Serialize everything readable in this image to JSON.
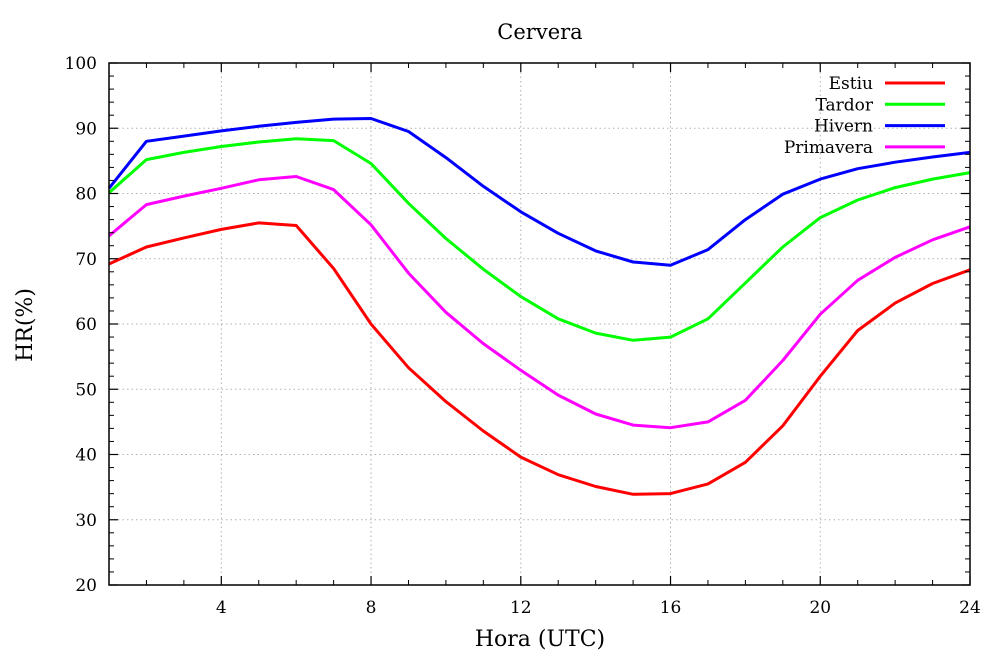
{
  "chart_data": {
    "type": "line",
    "title": "Cervera",
    "xlabel": "Hora (UTC)",
    "ylabel": "HR(%)",
    "xlim": [
      1,
      24
    ],
    "ylim": [
      20,
      100
    ],
    "xticks": [
      4,
      8,
      12,
      16,
      20,
      24
    ],
    "yticks": [
      20,
      30,
      40,
      50,
      60,
      70,
      80,
      90,
      100
    ],
    "grid": true,
    "legend_position": "top-right",
    "x": [
      1,
      2,
      3,
      4,
      5,
      6,
      7,
      8,
      9,
      10,
      11,
      12,
      13,
      14,
      15,
      16,
      17,
      18,
      19,
      20,
      21,
      22,
      23,
      24
    ],
    "series": [
      {
        "name": "Estiu",
        "color": "#ff0000",
        "values": [
          69.2,
          71.8,
          73.2,
          74.5,
          75.5,
          75.1,
          68.5,
          60.0,
          53.3,
          48.1,
          43.6,
          39.6,
          36.9,
          35.1,
          33.9,
          34.0,
          35.5,
          38.8,
          44.4,
          52.0,
          59.0,
          63.2,
          66.2,
          68.3
        ]
      },
      {
        "name": "Tardor",
        "color": "#00ff00",
        "values": [
          80.1,
          85.2,
          86.3,
          87.2,
          87.9,
          88.4,
          88.1,
          84.6,
          78.5,
          73.1,
          68.4,
          64.2,
          60.8,
          58.6,
          57.5,
          58.0,
          60.8,
          66.3,
          71.8,
          76.3,
          79.0,
          80.9,
          82.2,
          83.2
        ]
      },
      {
        "name": "Hivern",
        "color": "#0000ff",
        "values": [
          80.8,
          88.0,
          88.8,
          89.6,
          90.3,
          90.9,
          91.4,
          91.5,
          89.5,
          85.5,
          81.1,
          77.2,
          73.9,
          71.2,
          69.5,
          69.0,
          71.4,
          76.0,
          79.9,
          82.2,
          83.8,
          84.8,
          85.6,
          86.3
        ]
      },
      {
        "name": "Primavera",
        "color": "#ff00ff",
        "values": [
          73.5,
          78.3,
          79.6,
          80.8,
          82.1,
          82.6,
          80.6,
          75.2,
          67.8,
          61.8,
          57.0,
          52.9,
          49.1,
          46.2,
          44.5,
          44.1,
          45.0,
          48.3,
          54.4,
          61.5,
          66.7,
          70.2,
          72.9,
          74.9
        ]
      }
    ]
  }
}
